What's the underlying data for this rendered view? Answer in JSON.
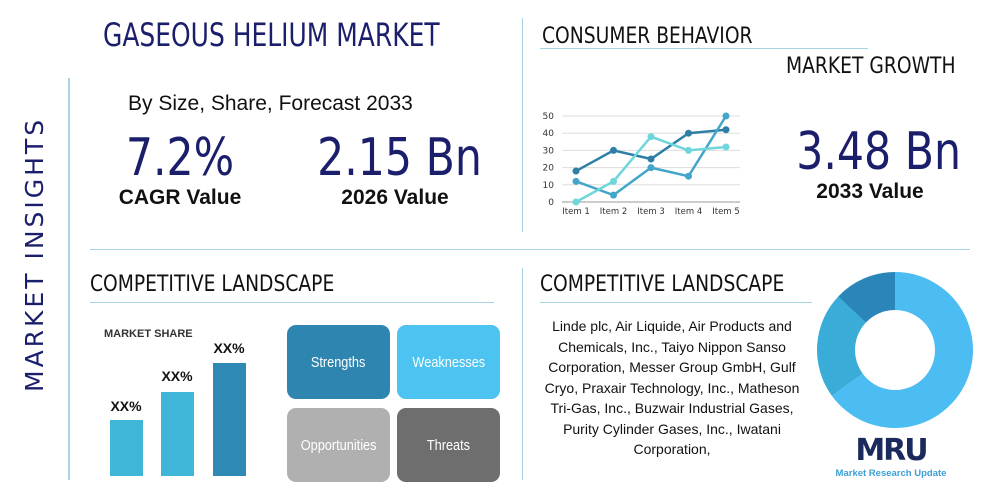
{
  "side_title": "MARKET INSIGHTS",
  "main_title": "GASEOUS HELIUM MARKET",
  "subtitle": "By Size, Share, Forecast 2033",
  "stats": [
    {
      "value": "7.2%",
      "label": "CAGR Value"
    },
    {
      "value": "2.15 Bn",
      "label": "2026 Value"
    },
    {
      "value": "3.48 Bn",
      "label": "2033 Value"
    }
  ],
  "consumer_title": "CONSUMER BEHAVIOR",
  "growth_title": "MARKET GROWTH",
  "competitive_title_left": "COMPETITIVE LANDSCAPE",
  "competitive_title_right": "COMPETITIVE LANDSCAPE",
  "market_share_label": "MARKET SHARE",
  "bar_labels": [
    "XX%",
    "XX%",
    "XX%"
  ],
  "swot": [
    "Strengths",
    "Weaknesses",
    "Opportunities",
    "Threats"
  ],
  "companies": "Linde plc, Air Liquide, Air Products and Chemicals, Inc., Taiyo Nippon Sanso Corporation, Messer Group GmbH, Gulf Cryo, Praxair Technology, Inc., Matheson Tri-Gas, Inc., Buzwair Industrial Gases, Purity Cylinder Gases, Inc., Iwatani Corporation,",
  "logo": {
    "mark": "MRU",
    "name": "Market Research Update"
  },
  "colors": {
    "navy": "#1b1f6b",
    "dark_blue": "#2e86b0",
    "light_blue": "#4cc3ec",
    "teal": "#3fb6d8",
    "grey": "#b0b0b0",
    "dark_grey": "#6e6e6e"
  },
  "chart_data": [
    {
      "type": "line",
      "categories": [
        "Item 1",
        "Item 2",
        "Item 3",
        "Item 4",
        "Item 5"
      ],
      "ylim": [
        0,
        50
      ],
      "yticks": [
        0,
        10,
        20,
        30,
        40,
        50
      ],
      "grid": true,
      "series": [
        {
          "values": [
            18,
            30,
            25,
            40,
            42
          ],
          "color": "#2e7fa6"
        },
        {
          "values": [
            12,
            4,
            20,
            15,
            50
          ],
          "color": "#43a6c9"
        },
        {
          "values": [
            0,
            12,
            38,
            30,
            32
          ],
          "color": "#6fd6dc"
        }
      ]
    },
    {
      "type": "pie",
      "donut": true,
      "values": [
        65,
        22,
        13
      ],
      "colors": [
        "#4cbdf2",
        "#3aacd8",
        "#2a86b8"
      ]
    }
  ]
}
